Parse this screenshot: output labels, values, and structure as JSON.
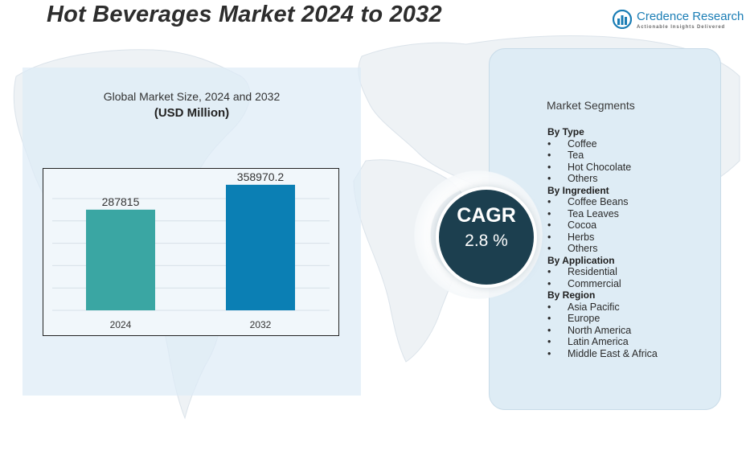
{
  "header": {
    "title": "Hot Beverages Market 2024 to 2032",
    "brand_name": "Credence Research",
    "brand_tagline": "Actionable Insights Delivered"
  },
  "chart": {
    "title": "Global Market Size, 2024 and 2032",
    "subtitle": "(USD Million)"
  },
  "chart_data": {
    "type": "bar",
    "categories": [
      "2024",
      "2032"
    ],
    "values": [
      287815,
      358970.2
    ],
    "value_labels": [
      "287815",
      "358970.2"
    ],
    "bar_colors": [
      "#3aa6a3",
      "#0b7fb4"
    ],
    "title": "Global Market Size, 2024 and 2032",
    "subtitle": "(USD Million)",
    "xlabel": "",
    "ylabel": "",
    "ylim": [
      0,
      400000
    ],
    "grid": true,
    "legend": "none"
  },
  "cagr": {
    "label": "CAGR",
    "value": "2.8 %"
  },
  "segments": {
    "heading": "Market Segments",
    "bullet": "•",
    "groups": [
      {
        "title": "By  Type",
        "items": [
          "Coffee",
          "Tea",
          "Hot Chocolate",
          "Others"
        ]
      },
      {
        "title": "By Ingredient",
        "items": [
          "Coffee Beans",
          "Tea Leaves",
          "Cocoa",
          "Herbs",
          "Others"
        ]
      },
      {
        "title": "By Application",
        "items": [
          "Residential",
          "Commercial"
        ]
      },
      {
        "title": "By Region",
        "items": [
          "Asia Pacific",
          "Europe",
          "North America",
          "Latin America",
          "Middle East & Africa"
        ]
      }
    ]
  },
  "colors": {
    "accent": "#0b7fb4",
    "teal": "#3aa6a3",
    "cagr_bg": "#1c3f4f",
    "panel": "#deecf5"
  }
}
